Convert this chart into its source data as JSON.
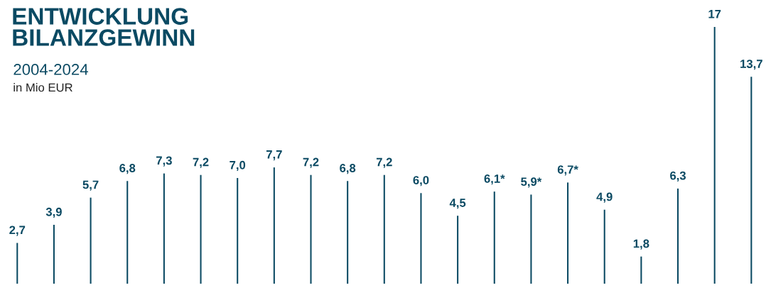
{
  "chart_data": {
    "type": "bar",
    "title": "ENTWICKLUNG\nBILANZGEWINN",
    "subtitle": "2004-2024",
    "annotations": [
      "in Mio EUR"
    ],
    "categories": [
      null,
      null,
      null,
      null,
      null,
      null,
      null,
      null,
      null,
      null,
      null,
      null,
      null,
      null,
      null,
      null,
      null,
      null,
      null,
      null,
      null
    ],
    "values": [
      2.7,
      3.9,
      5.7,
      6.8,
      7.3,
      7.2,
      7.0,
      7.7,
      7.2,
      6.8,
      7.2,
      6.0,
      4.5,
      6.1,
      5.9,
      6.7,
      4.9,
      1.8,
      6.3,
      17,
      13.7
    ],
    "value_labels": [
      "2,7",
      "3,9",
      "5,7",
      "6,8",
      "7,3",
      "7,2",
      "7,0",
      "7,7",
      "7,2",
      "6,8",
      "7,2",
      "6,0",
      "4,5",
      "6,1*",
      "5,9*",
      "6,7*",
      "4,9",
      "1,8",
      "6,3",
      "17",
      "13,7"
    ],
    "color": "#0b4a63"
  }
}
